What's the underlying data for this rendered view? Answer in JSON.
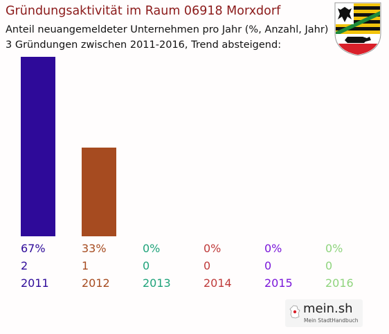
{
  "title": "Gründungsaktivität im Raum 06918 Morxdorf",
  "subtitle_line1": "Anteil neuangemeldeter Unternehmen pro Jahr (%, Anzahl, Jahr)",
  "subtitle_line2": "3 Gründungen zwischen 2011-2016, Trend absteigend:",
  "logo": {
    "wordmark": "mein.sh",
    "tagline": "Mein StadtHandbuch"
  },
  "crest_icon": "saxony-anhalt-coat-of-arms-icon",
  "chart_data": {
    "type": "bar",
    "categories": [
      "2011",
      "2012",
      "2013",
      "2014",
      "2015",
      "2016"
    ],
    "percent_labels": [
      "67%",
      "33%",
      "0%",
      "0%",
      "0%",
      "0%"
    ],
    "count_labels": [
      "2",
      "1",
      "0",
      "0",
      "0",
      "0"
    ],
    "values": [
      67,
      33,
      0,
      0,
      0,
      0
    ],
    "counts": [
      2,
      1,
      0,
      0,
      0,
      0
    ],
    "colors": [
      "#2e0a99",
      "#a64b20",
      "#1fa37a",
      "#bf3a3a",
      "#7a16d9",
      "#8fd47d"
    ],
    "ylim": [
      0,
      67
    ],
    "grid": false,
    "legend": "none"
  }
}
